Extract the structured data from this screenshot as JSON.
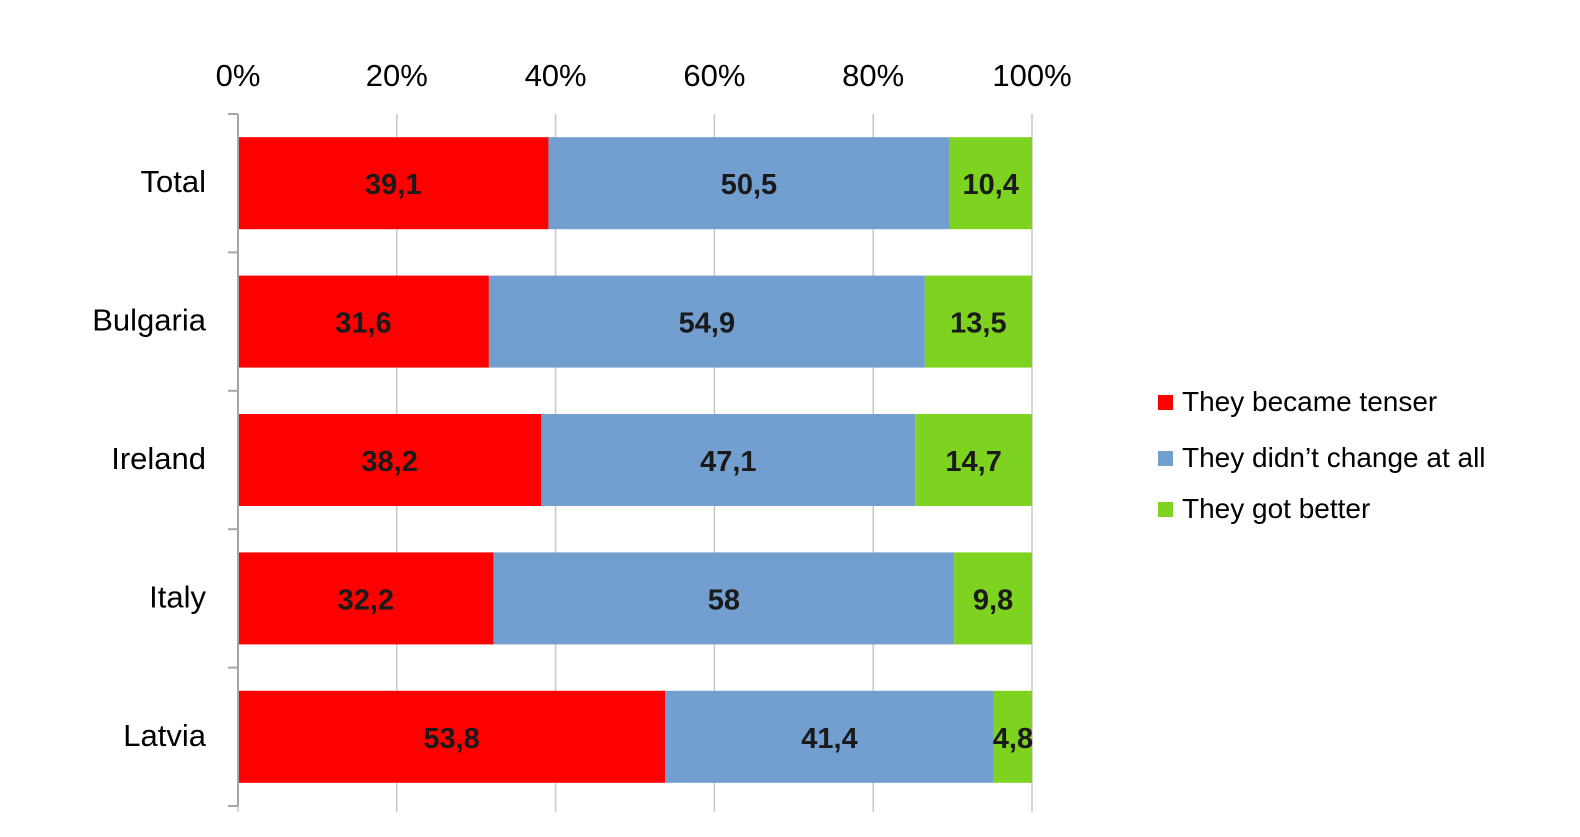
{
  "chart_data": {
    "type": "bar",
    "orientation": "horizontal",
    "stacked": "percent",
    "title": "",
    "xlabel": "",
    "ylabel": "",
    "xlim": [
      0,
      100
    ],
    "x_ticks": [
      "0%",
      "20%",
      "40%",
      "60%",
      "80%",
      "100%"
    ],
    "x_tick_values": [
      0,
      20,
      40,
      60,
      80,
      100
    ],
    "x_axis_position": "top",
    "grid": true,
    "legend_position": "right",
    "categories": [
      "Total",
      "Bulgaria",
      "Ireland",
      "Italy",
      "Latvia"
    ],
    "series": [
      {
        "name": "They became tenser",
        "color": "#ff0000",
        "values": [
          39.1,
          31.6,
          38.2,
          32.2,
          53.8
        ],
        "labels": [
          "39,1",
          "31,6",
          "38,2",
          "32,2",
          "53,8"
        ]
      },
      {
        "name": "They didn’t change at all",
        "color": "#729fcf",
        "values": [
          50.5,
          54.9,
          47.1,
          58,
          41.4
        ],
        "labels": [
          "50,5",
          "54,9",
          "47,1",
          "58",
          "41,4"
        ]
      },
      {
        "name": "They got better",
        "color": "#7ed321",
        "values": [
          10.4,
          13.5,
          14.7,
          9.8,
          4.8
        ],
        "labels": [
          "10,4",
          "13,5",
          "14,7",
          "9,8",
          "4,8"
        ]
      }
    ]
  }
}
